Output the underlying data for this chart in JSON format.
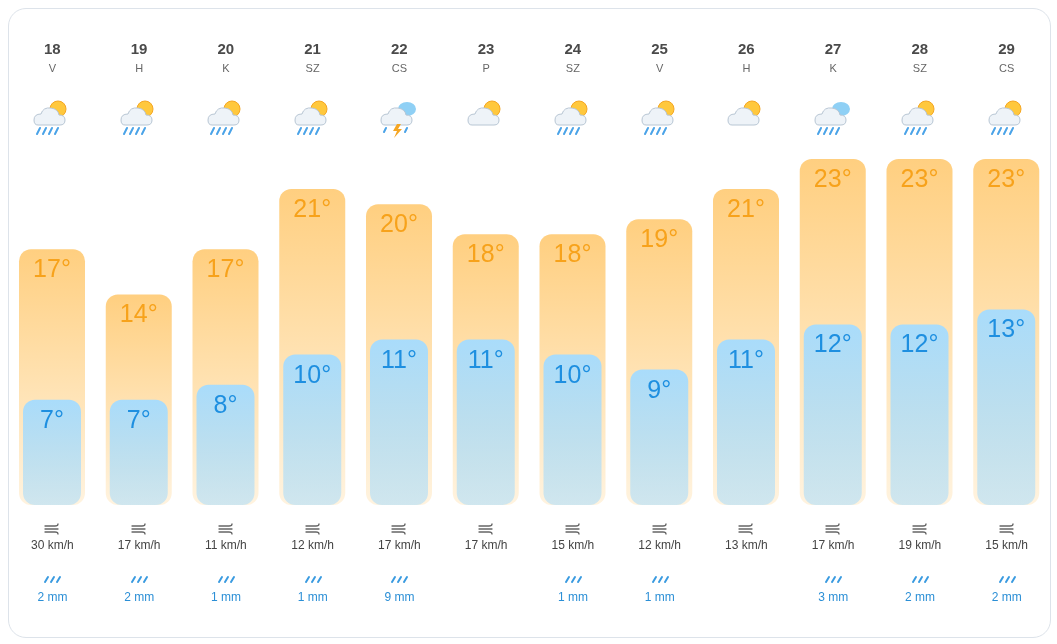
{
  "chart_data": {
    "type": "bar",
    "categories": [
      "18 V",
      "19 H",
      "20 K",
      "21 SZ",
      "22 CS",
      "23 P",
      "24 SZ",
      "25 V",
      "26 H",
      "27 K",
      "28 SZ",
      "29 CS"
    ],
    "series": [
      {
        "color": "#ffcf80",
        "values": [
          17,
          14,
          17,
          21,
          20,
          18,
          18,
          19,
          21,
          23,
          23,
          23
        ],
        "value_labels": [
          "17°",
          "14°",
          "17°",
          "21°",
          "20°",
          "18°",
          "18°",
          "19°",
          "21°",
          "23°",
          "23°",
          "23°"
        ]
      },
      {
        "color": "#a9dcfb",
        "values": [
          7,
          7,
          8,
          10,
          11,
          11,
          10,
          9,
          11,
          12,
          12,
          13
        ],
        "value_labels": [
          "7°",
          "7°",
          "8°",
          "10°",
          "11°",
          "11°",
          "10°",
          "9°",
          "11°",
          "12°",
          "12°",
          "13°"
        ]
      }
    ],
    "grid": false,
    "legend": false,
    "annotations": [
      "30 km/h",
      "2 mm",
      "17 km/h",
      "2 mm",
      "11 km/h",
      "1 mm",
      "12 km/h",
      "1 mm",
      "17 km/h",
      "9 mm",
      "17 km/h",
      null,
      "15 km/h",
      "1 mm",
      "12 km/h",
      "1 mm",
      "13 km/h",
      null,
      "17 km/h",
      "3 mm",
      "19 km/h",
      "2 mm",
      "15 km/h",
      "2 mm"
    ]
  }
}
